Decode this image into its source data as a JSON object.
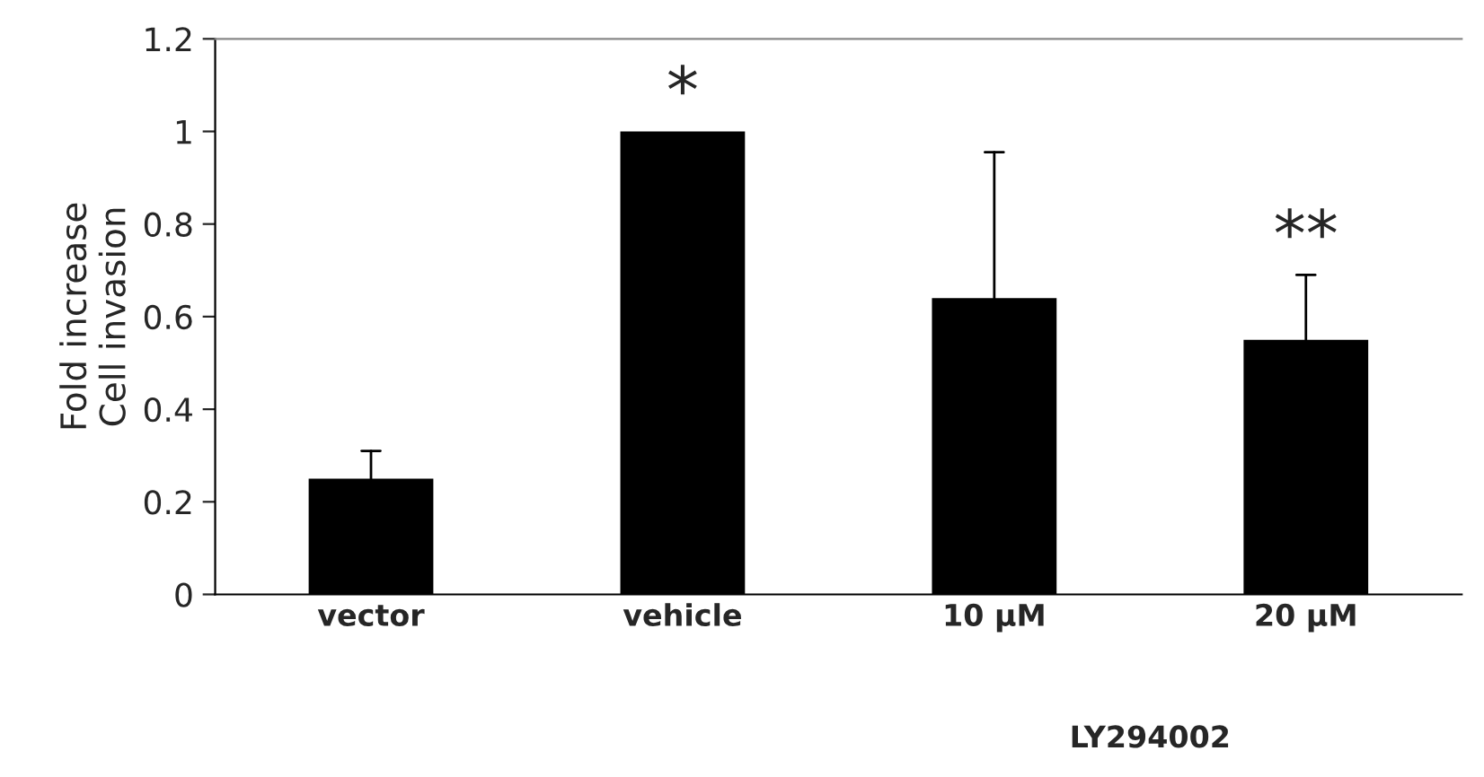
{
  "chart_data": {
    "type": "bar",
    "ylabel": "Fold increase\nCell invasion",
    "categories": [
      "vector",
      "vehicle",
      "10 µM",
      "20 µM"
    ],
    "values": [
      0.25,
      1.0,
      0.64,
      0.55
    ],
    "errors": [
      [
        0.25,
        0.31
      ],
      null,
      [
        0.64,
        0.955
      ],
      [
        0.55,
        0.69
      ]
    ],
    "color": "#000000",
    "ylim": [
      0,
      1.2
    ],
    "yticks": [
      0,
      0.2,
      0.4,
      0.6,
      0.8,
      1,
      1.2
    ],
    "grid": false,
    "legend": false,
    "annotations": [
      {
        "text": "*",
        "x": "vehicle",
        "y": 1.0
      },
      {
        "text": "**",
        "x": "20 µM",
        "y": 0.69
      },
      "LY294002"
    ]
  }
}
